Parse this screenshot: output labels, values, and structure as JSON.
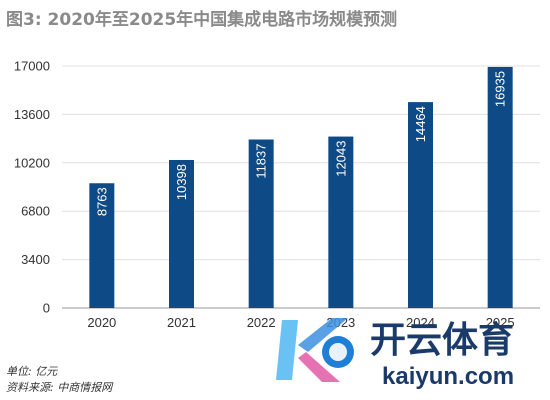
{
  "title": "图3: 2020年至2025年中国集成电路市场规模预测",
  "footer": {
    "unit": "单位: 亿元",
    "source": "资料来源: 中商情报网"
  },
  "watermark": {
    "brand": "开云体育",
    "site": "kaiyun.com"
  },
  "colors": {
    "bar": "#0d4a86",
    "grid": "#e0e0e0",
    "axis": "#999999"
  },
  "chart_data": {
    "type": "bar",
    "categories": [
      "2020",
      "2021",
      "2022",
      "2023",
      "2024",
      "2025"
    ],
    "values": [
      8763,
      10398,
      11837,
      12043,
      14464,
      16935
    ],
    "value_labels": [
      "8763",
      "10398",
      "11837",
      "12043",
      "14464",
      "16935"
    ],
    "yticks": [
      0,
      3400,
      6800,
      10200,
      13600,
      17000
    ],
    "ylim": [
      0,
      17000
    ],
    "title": "图3: 2020年至2025年中国集成电路市场规模预测",
    "xlabel": "",
    "ylabel": "",
    "grid": true,
    "value_label_orientation": "vertical-inside-top"
  }
}
